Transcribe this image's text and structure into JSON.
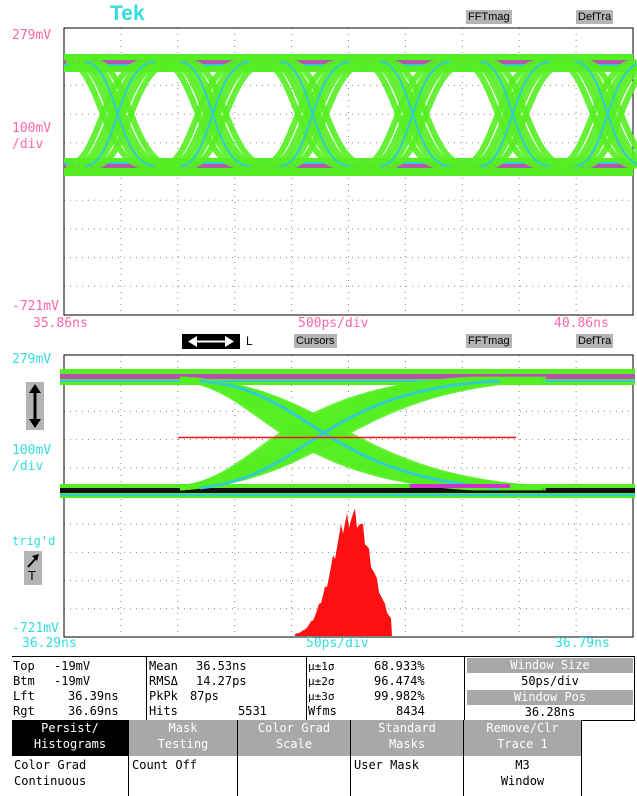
{
  "brand": "Tek",
  "top_panel": {
    "tag_fft": "FFTmag",
    "tag_def": "DefTra",
    "y_top": "279mV",
    "y_scale_1": "100mV",
    "y_scale_2": "/div",
    "y_bottom": "-721mV",
    "x_left": "35.86ns",
    "x_mid": "500ps/div",
    "x_right": "40.86ns"
  },
  "mid_bar": {
    "arrow_label": "L",
    "cursors": "Cursors",
    "tag_fft": "FFTmag",
    "tag_def": "DefTra"
  },
  "bottom_panel": {
    "y_top": "279mV",
    "y_scale_1": "100mV",
    "y_scale_2": "/div",
    "trig_1": "trig'd",
    "trig_2": "T",
    "y_bottom": "-721mV",
    "x_left": "36.29ns",
    "x_mid": "50ps/div",
    "x_right": "36.79ns"
  },
  "measurements": {
    "top_label": "Top",
    "top_value": "-19mV",
    "btm_label": "Btm",
    "btm_value": "-19mV",
    "lft_label": "Lft",
    "lft_value": "36.39ns",
    "rgt_label": "Rgt",
    "rgt_value": "36.69ns",
    "mean_label": "Mean",
    "mean_value": "36.53ns",
    "rms_label": "RMSΔ",
    "rms_value": "14.27ps",
    "pkpk_label": "PkPk",
    "pkpk_value": "87ps",
    "hits_label": "Hits",
    "hits_value": "5531",
    "s1_label": "μ±1σ",
    "s1_value": "68.933%",
    "s2_label": "μ±2σ",
    "s2_value": "96.474%",
    "s3_label": "μ±3σ",
    "s3_value": "99.982%",
    "wfms_label": "Wfms",
    "wfms_value": "8434",
    "window_size_label": "Window Size",
    "window_size_value": "50ps/div",
    "window_pos_label": "Window Pos",
    "window_pos_value": "36.28ns"
  },
  "menu": {
    "persist_top": "Persist/\nHistograms",
    "persist_bottom": "Color Grad\nContinuous",
    "mask_top": "Mask\nTesting",
    "mask_bottom": "Count Off",
    "color_top": "Color Grad\nScale",
    "color_bottom": "",
    "standard_top": "Standard\nMasks",
    "standard_bottom": "User Mask",
    "remove_top": "Remove/Clr\nTrace 1",
    "remove_bottom": "M3\nWindow"
  },
  "colors": {
    "eye_green": "#55ee22",
    "eye_cyan": "#33cccc",
    "eye_magenta": "#cc33cc",
    "histogram_red": "#ff1010",
    "label_pink": "#ff66aa",
    "label_cyan": "#33dddd"
  }
}
